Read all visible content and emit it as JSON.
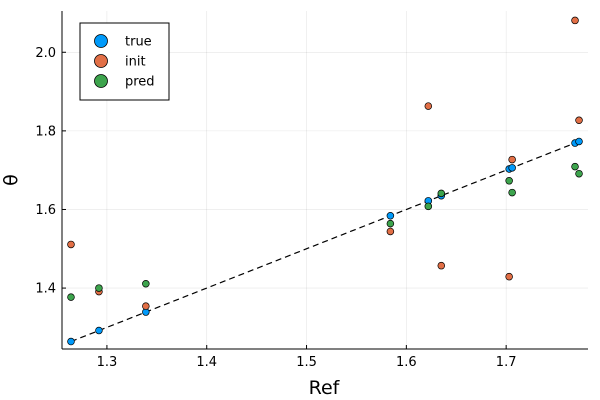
{
  "chart_data": {
    "type": "scatter",
    "title": "",
    "xlabel": "Ref",
    "ylabel": "θ",
    "xlim": [
      1.255,
      1.782
    ],
    "ylim": [
      1.245,
      2.105
    ],
    "xticks": [
      1.3,
      1.4,
      1.5,
      1.6,
      1.7
    ],
    "xtick_labels": [
      "1.3",
      "1.4",
      "1.5",
      "1.6",
      "1.7"
    ],
    "yticks": [
      1.4,
      1.6,
      1.8,
      2.0
    ],
    "ytick_labels": [
      "1.4",
      "1.6",
      "1.8",
      "2.0"
    ],
    "grid": true,
    "legend_position": "top-left",
    "reference_line": {
      "style": "dashed",
      "color": "#000000",
      "from": [
        1.264,
        1.264
      ],
      "to": [
        1.773,
        1.773
      ]
    },
    "series": [
      {
        "name": "true",
        "color": "#009AFA",
        "x": [
          1.264,
          1.292,
          1.339,
          1.584,
          1.622,
          1.635,
          1.703,
          1.706,
          1.769,
          1.773
        ],
        "y": [
          1.264,
          1.292,
          1.339,
          1.584,
          1.622,
          1.635,
          1.703,
          1.706,
          1.769,
          1.773
        ]
      },
      {
        "name": "init",
        "color": "#E26F46",
        "x": [
          1.264,
          1.292,
          1.339,
          1.584,
          1.622,
          1.635,
          1.703,
          1.706,
          1.769,
          1.773
        ],
        "y": [
          1.511,
          1.391,
          1.354,
          1.544,
          1.863,
          1.457,
          1.429,
          1.727,
          2.081,
          1.827
        ]
      },
      {
        "name": "pred",
        "color": "#3DA44D",
        "x": [
          1.264,
          1.292,
          1.339,
          1.584,
          1.622,
          1.635,
          1.703,
          1.706,
          1.769,
          1.773
        ],
        "y": [
          1.377,
          1.4,
          1.411,
          1.564,
          1.608,
          1.641,
          1.673,
          1.643,
          1.709,
          1.691
        ]
      }
    ]
  }
}
